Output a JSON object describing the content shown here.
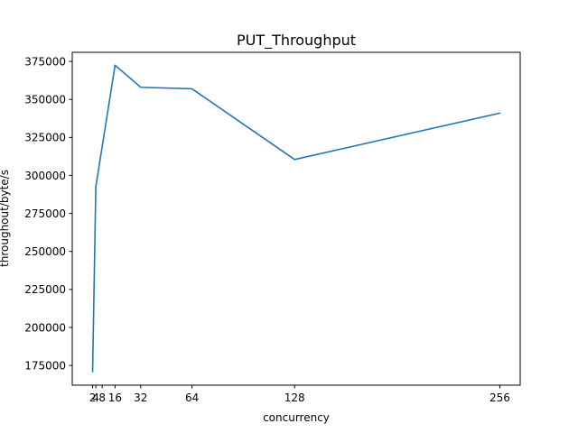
{
  "chart_data": {
    "type": "line",
    "title": "PUT_Throughput",
    "xlabel": "concurrency",
    "ylabel": "throughout/byte/s",
    "xlim": [
      -10.7,
      268.7
    ],
    "ylim": [
      162000,
      381000
    ],
    "xticks": [
      2,
      4,
      8,
      16,
      32,
      64,
      128,
      256
    ],
    "xtick_labels": [
      "2",
      "4",
      "8",
      "16",
      "32",
      "64",
      "128",
      "256"
    ],
    "yticks": [
      175000,
      200000,
      225000,
      250000,
      275000,
      300000,
      325000,
      350000,
      375000
    ],
    "ytick_labels": [
      "175000",
      "200000",
      "225000",
      "250000",
      "275000",
      "300000",
      "325000",
      "350000",
      "375000"
    ],
    "grid": false,
    "series": [
      {
        "color": "#1f77b4",
        "x": [
          2,
          4,
          16,
          32,
          64,
          128,
          256
        ],
        "y": [
          171000,
          292500,
          372500,
          358000,
          357000,
          310500,
          341000
        ]
      }
    ]
  }
}
